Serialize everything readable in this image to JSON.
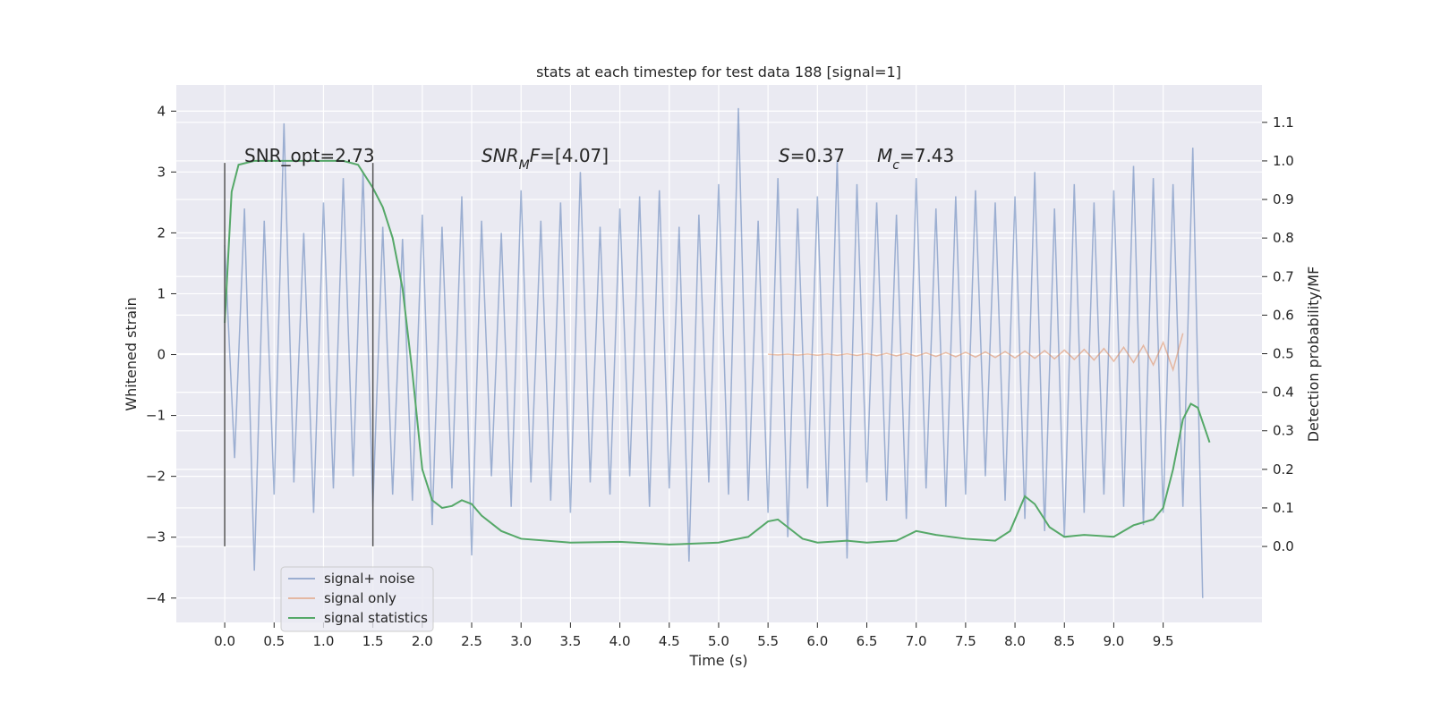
{
  "chart_data": {
    "type": "line",
    "title": "stats at each timestep for test data 188 [signal=1]",
    "xlabel": "Time (s)",
    "ylabel": "Whitened strain",
    "y2label": "Detection probability/MF",
    "xlim": [
      -0.49,
      10.5
    ],
    "ylim": [
      -4.4,
      4.43
    ],
    "y2lim": [
      -0.197,
      1.197
    ],
    "xticks": [
      {
        "value": 0,
        "label": "0.0"
      },
      0.5,
      {
        "value": 1,
        "label": "1.0"
      },
      1.5,
      {
        "value": 2,
        "label": "2.0"
      },
      2.5,
      {
        "value": 3,
        "label": "3.0"
      },
      3.5,
      {
        "value": 4,
        "label": "4.0"
      },
      4.5,
      {
        "value": 5,
        "label": "5.0"
      },
      5.5,
      {
        "value": 6,
        "label": "6.0"
      },
      6.5,
      {
        "value": 7,
        "label": "7.0"
      },
      7.5,
      {
        "value": 8,
        "label": "8.0"
      },
      8.5,
      {
        "value": 9,
        "label": "9.0"
      },
      9.5
    ],
    "yticks": [
      {
        "value": -4,
        "label": "−4"
      },
      {
        "value": -3,
        "label": "−3"
      },
      {
        "value": -2,
        "label": "−2"
      },
      {
        "value": -1,
        "label": "−1"
      },
      0,
      1,
      2,
      3,
      4
    ],
    "y2ticks": [
      {
        "value": 0,
        "label": "0.0"
      },
      0.1,
      0.2,
      0.3,
      0.4,
      0.5,
      0.6,
      0.7,
      0.8,
      0.9,
      {
        "value": 1,
        "label": "1.0"
      },
      1.1
    ],
    "grid": true,
    "legend": "lower left",
    "vlines": {
      "color": "#555555",
      "lines": [
        {
          "x": 0,
          "ymin": -3.15,
          "ymax": 3.15
        },
        {
          "x": 1.5,
          "ymin": -3.15,
          "ymax": 3.15
        }
      ]
    },
    "annotations": [
      [
        {
          "text": "SNR_opt=2.73"
        }
      ],
      [
        {
          "text": "SNR",
          "italic": true
        },
        {
          "text": "M",
          "italic": true,
          "sub": true
        },
        {
          "text": "F",
          "italic": true
        },
        {
          "text": "=[4.07]"
        }
      ],
      [
        {
          "text": "S",
          "italic": true
        },
        {
          "text": "=0.37"
        }
      ],
      [
        {
          "text": "M",
          "italic": true
        },
        {
          "text": "c",
          "italic": true,
          "sub": true
        },
        {
          "text": "=7.43"
        }
      ]
    ],
    "series": [
      {
        "name": "signal+ noise",
        "color": "#4c72b0",
        "alpha": 0.5,
        "x": [
          0,
          0.1,
          0.2,
          0.3,
          0.4,
          0.5,
          0.6,
          0.7,
          0.8,
          0.9,
          1,
          1.1,
          1.2,
          1.3,
          1.4,
          1.5,
          1.6,
          1.7,
          1.8,
          1.9,
          2,
          2.1,
          2.2,
          2.3,
          2.4,
          2.5,
          2.6,
          2.7,
          2.8,
          2.9,
          3,
          3.1,
          3.2,
          3.3,
          3.4,
          3.5,
          3.6,
          3.7,
          3.8,
          3.9,
          4,
          4.1,
          4.2,
          4.3,
          4.4,
          4.5,
          4.6,
          4.7,
          4.8,
          4.9,
          5,
          5.1,
          5.2,
          5.3,
          5.4,
          5.5,
          5.6,
          5.7,
          5.8,
          5.9,
          6,
          6.1,
          6.2,
          6.3,
          6.4,
          6.5,
          6.6,
          6.7,
          6.8,
          6.9,
          7,
          7.1,
          7.2,
          7.3,
          7.4,
          7.5,
          7.6,
          7.7,
          7.8,
          7.9,
          8,
          8.1,
          8.2,
          8.3,
          8.4,
          8.5,
          8.6,
          8.7,
          8.8,
          8.9,
          9,
          9.1,
          9.2,
          9.3,
          9.4,
          9.5,
          9.6,
          9.7,
          9.8,
          9.9
        ],
        "values": [
          1.8,
          -1.7,
          2.4,
          -3.55,
          2.2,
          -2.3,
          3.8,
          -2.1,
          2.0,
          -2.6,
          2.5,
          -2.2,
          2.9,
          -2.0,
          3.0,
          -2.5,
          2.1,
          -2.3,
          1.9,
          -2.4,
          2.3,
          -2.8,
          2.1,
          -2.2,
          2.6,
          -3.3,
          2.2,
          -2.0,
          2.0,
          -2.5,
          2.7,
          -2.1,
          2.2,
          -2.4,
          2.5,
          -2.6,
          3.0,
          -2.1,
          2.1,
          -2.3,
          2.4,
          -2.0,
          2.6,
          -2.5,
          2.7,
          -2.2,
          2.1,
          -3.4,
          2.3,
          -2.1,
          2.8,
          -2.3,
          4.05,
          -2.4,
          2.2,
          -2.6,
          2.9,
          -3.0,
          2.4,
          -2.2,
          2.6,
          -2.5,
          3.2,
          -3.35,
          2.8,
          -2.1,
          2.5,
          -2.4,
          2.3,
          -2.7,
          2.9,
          -2.2,
          2.4,
          -2.5,
          2.6,
          -2.3,
          2.7,
          -2.0,
          2.5,
          -2.4,
          2.6,
          -2.7,
          3.0,
          -2.9,
          2.4,
          -3.0,
          2.8,
          -2.6,
          2.5,
          -2.3,
          2.7,
          -2.5,
          3.1,
          -2.8,
          2.9,
          -2.6,
          2.8,
          -2.5,
          3.4,
          -4.0
        ]
      },
      {
        "name": "signal only",
        "color": "#dd8452",
        "alpha": 0.5,
        "x": [
          5.5,
          5.6,
          5.7,
          5.8,
          5.9,
          6,
          6.1,
          6.2,
          6.3,
          6.4,
          6.5,
          6.6,
          6.7,
          6.8,
          6.9,
          7,
          7.1,
          7.2,
          7.3,
          7.4,
          7.5,
          7.6,
          7.7,
          7.8,
          7.9,
          8,
          8.1,
          8.2,
          8.3,
          8.4,
          8.5,
          8.6,
          8.7,
          8.8,
          8.9,
          9,
          9.1,
          9.2,
          9.3,
          9.4,
          9.5,
          9.6,
          9.7
        ],
        "values": [
          0.005,
          -0.006,
          0.007,
          -0.008,
          0.009,
          -0.01,
          0.011,
          -0.012,
          0.013,
          -0.015,
          0.016,
          -0.018,
          0.02,
          -0.022,
          0.024,
          -0.026,
          0.028,
          -0.03,
          0.032,
          -0.035,
          0.038,
          -0.041,
          0.044,
          -0.047,
          0.05,
          -0.054,
          0.058,
          -0.062,
          0.066,
          -0.07,
          0.075,
          -0.08,
          0.085,
          -0.09,
          0.1,
          -0.11,
          0.12,
          -0.13,
          0.15,
          -0.17,
          0.2,
          -0.25,
          0.35
        ]
      },
      {
        "name": "signal statistics",
        "color": "#55a868",
        "alpha": 1,
        "axis": "y2",
        "x": [
          0,
          0.07,
          0.14,
          0.3,
          0.5,
          1.0,
          1.2,
          1.35,
          1.5,
          1.6,
          1.7,
          1.8,
          1.9,
          2.0,
          2.1,
          2.2,
          2.3,
          2.4,
          2.5,
          2.6,
          2.8,
          3.0,
          3.5,
          4.0,
          4.5,
          5.0,
          5.3,
          5.5,
          5.6,
          5.7,
          5.85,
          6.0,
          6.3,
          6.5,
          6.8,
          7.0,
          7.2,
          7.5,
          7.8,
          7.95,
          8.1,
          8.2,
          8.35,
          8.5,
          8.7,
          9.0,
          9.2,
          9.4,
          9.5,
          9.6,
          9.7,
          9.78,
          9.85,
          9.93,
          9.97
        ],
        "values": [
          0.58,
          0.92,
          0.99,
          1.0,
          1.0,
          1.0,
          1.0,
          0.99,
          0.93,
          0.88,
          0.8,
          0.67,
          0.45,
          0.2,
          0.12,
          0.1,
          0.105,
          0.12,
          0.11,
          0.08,
          0.04,
          0.02,
          0.01,
          0.012,
          0.005,
          0.01,
          0.025,
          0.065,
          0.07,
          0.05,
          0.02,
          0.01,
          0.015,
          0.01,
          0.015,
          0.04,
          0.03,
          0.02,
          0.015,
          0.04,
          0.13,
          0.11,
          0.05,
          0.025,
          0.03,
          0.025,
          0.055,
          0.07,
          0.1,
          0.2,
          0.33,
          0.37,
          0.36,
          0.3,
          0.27
        ]
      }
    ]
  }
}
